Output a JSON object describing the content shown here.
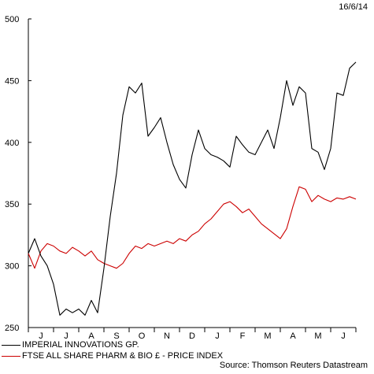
{
  "date_stamp": "16/6/14",
  "source": "Source: Thomson Reuters Datastream",
  "colors": {
    "imperial": "#000000",
    "ftse": "#cc0000",
    "axis": "#000000"
  },
  "chart_data": {
    "type": "line",
    "title": "",
    "xlabel": "",
    "ylabel": "",
    "ylim": [
      250,
      500
    ],
    "yticks": [
      250,
      300,
      350,
      400,
      450,
      500
    ],
    "x_ticks": [
      "J",
      "J",
      "A",
      "S",
      "O",
      "N",
      "D",
      "J",
      "F",
      "M",
      "A",
      "M",
      "J"
    ],
    "x_unit": "weekly observations from mid-June 2013 to 16 June 2014 (index 0-52)",
    "legend_position": "bottom",
    "grid": false,
    "series": [
      {
        "name": "IMPERIAL INNOVATIONS GP.",
        "color": "#000000",
        "x": [
          0,
          1,
          2,
          3,
          4,
          5,
          6,
          7,
          8,
          9,
          10,
          11,
          12,
          13,
          14,
          15,
          16,
          17,
          18,
          19,
          20,
          21,
          22,
          23,
          24,
          25,
          26,
          27,
          28,
          29,
          30,
          31,
          32,
          33,
          34,
          35,
          36,
          37,
          38,
          39,
          40,
          41,
          42,
          43,
          44,
          45,
          46,
          47,
          48,
          49,
          50,
          51,
          52
        ],
        "values": [
          310,
          322,
          308,
          300,
          285,
          260,
          265,
          262,
          265,
          260,
          272,
          262,
          298,
          340,
          375,
          422,
          445,
          440,
          448,
          405,
          412,
          420,
          400,
          382,
          370,
          363,
          390,
          410,
          395,
          390,
          388,
          385,
          380,
          405,
          398,
          392,
          390,
          400,
          410,
          395,
          420,
          450,
          430,
          445,
          440,
          395,
          392,
          378,
          395,
          440,
          438,
          460,
          465
        ]
      },
      {
        "name": "FTSE ALL SHARE PHARM & BIO £ - PRICE INDEX",
        "color": "#cc0000",
        "x": [
          0,
          1,
          2,
          3,
          4,
          5,
          6,
          7,
          8,
          9,
          10,
          11,
          12,
          13,
          14,
          15,
          16,
          17,
          18,
          19,
          20,
          21,
          22,
          23,
          24,
          25,
          26,
          27,
          28,
          29,
          30,
          31,
          32,
          33,
          34,
          35,
          36,
          37,
          38,
          39,
          40,
          41,
          42,
          43,
          44,
          45,
          46,
          47,
          48,
          49,
          50,
          51,
          52
        ],
        "values": [
          310,
          298,
          312,
          318,
          316,
          312,
          310,
          315,
          312,
          308,
          312,
          305,
          302,
          300,
          298,
          302,
          310,
          316,
          314,
          318,
          316,
          318,
          320,
          318,
          322,
          320,
          325,
          328,
          334,
          338,
          344,
          350,
          352,
          348,
          343,
          346,
          340,
          334,
          330,
          326,
          322,
          330,
          348,
          364,
          362,
          352,
          357,
          354,
          352,
          355,
          354,
          356,
          354
        ]
      }
    ]
  }
}
